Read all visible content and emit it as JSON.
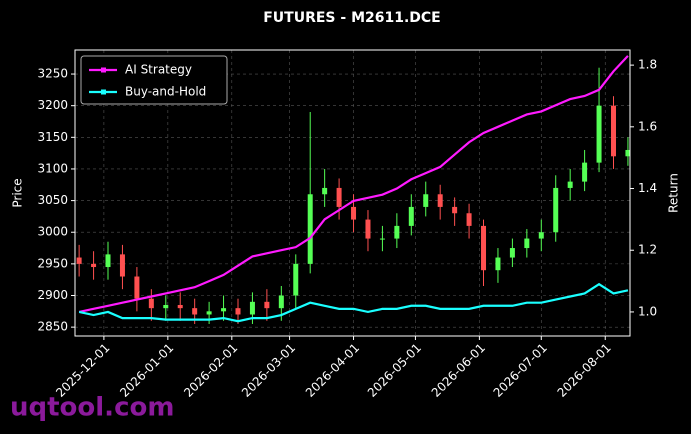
{
  "chart_data": {
    "type": "candlestick",
    "title": "FUTURES - M2611.DCE",
    "y_label": "Price",
    "y2_label": "Return",
    "watermark": "uqtool.com",
    "x": [
      "2025-11-19",
      "2025-11-26",
      "2025-12-03",
      "2025-12-10",
      "2025-12-17",
      "2025-12-24",
      "2025-12-31",
      "2026-01-07",
      "2026-01-14",
      "2026-01-21",
      "2026-01-28",
      "2026-02-04",
      "2026-02-11",
      "2026-02-18",
      "2026-02-25",
      "2026-03-04",
      "2026-03-11",
      "2026-03-18",
      "2026-03-25",
      "2026-04-01",
      "2026-04-08",
      "2026-04-15",
      "2026-04-22",
      "2026-04-29",
      "2026-05-06",
      "2026-05-13",
      "2026-05-20",
      "2026-05-27",
      "2026-06-03",
      "2026-06-10",
      "2026-06-17",
      "2026-06-24",
      "2026-07-01",
      "2026-07-08",
      "2026-07-15",
      "2026-07-22",
      "2026-07-29",
      "2026-08-05",
      "2026-08-12"
    ],
    "open": [
      2960,
      2950,
      2945,
      2965,
      2930,
      2895,
      2880,
      2885,
      2880,
      2870,
      2875,
      2880,
      2870,
      2890,
      2880,
      2900,
      2950,
      3060,
      3070,
      3040,
      3020,
      2990,
      2990,
      3010,
      3040,
      3060,
      3040,
      3030,
      3010,
      2940,
      2960,
      2975,
      2990,
      3000,
      3070,
      3080,
      3110,
      3200,
      3120
    ],
    "high": [
      2980,
      2970,
      2985,
      2980,
      2945,
      2910,
      2900,
      2905,
      2895,
      2890,
      2900,
      2895,
      2905,
      2910,
      2915,
      2965,
      3190,
      3100,
      3085,
      3060,
      3035,
      3010,
      3030,
      3060,
      3080,
      3075,
      3055,
      3045,
      3020,
      2975,
      2990,
      3005,
      3020,
      3090,
      3100,
      3130,
      3260,
      3215,
      3150
    ],
    "low": [
      2930,
      2925,
      2925,
      2910,
      2875,
      2860,
      2860,
      2860,
      2855,
      2855,
      2860,
      2855,
      2855,
      2860,
      2860,
      2880,
      2935,
      3040,
      3020,
      3000,
      2970,
      2970,
      2975,
      2995,
      3025,
      3020,
      3010,
      2990,
      2915,
      2920,
      2945,
      2960,
      2970,
      2985,
      3050,
      3065,
      3095,
      3100,
      3105
    ],
    "close": [
      2950,
      2945,
      2965,
      2930,
      2895,
      2880,
      2885,
      2880,
      2870,
      2875,
      2880,
      2870,
      2890,
      2880,
      2900,
      2950,
      3060,
      3070,
      3040,
      3020,
      2990,
      2990,
      3010,
      3040,
      3060,
      3040,
      3030,
      3010,
      2940,
      2960,
      2975,
      2990,
      3000,
      3070,
      3080,
      3110,
      3200,
      3120,
      3130
    ],
    "up_color": "#55ff55",
    "down_color": "#ff5050",
    "series": [
      {
        "name": "AI Strategy",
        "color": "#ff1aff",
        "axis": "y2",
        "values": [
          1.0,
          1.01,
          1.02,
          1.03,
          1.04,
          1.05,
          1.06,
          1.07,
          1.08,
          1.1,
          1.12,
          1.15,
          1.18,
          1.19,
          1.2,
          1.21,
          1.24,
          1.3,
          1.33,
          1.36,
          1.37,
          1.38,
          1.4,
          1.43,
          1.45,
          1.47,
          1.51,
          1.55,
          1.58,
          1.6,
          1.62,
          1.64,
          1.65,
          1.67,
          1.69,
          1.7,
          1.72,
          1.78,
          1.83
        ]
      },
      {
        "name": "Buy-and-Hold",
        "color": "#1affff",
        "axis": "y2",
        "values": [
          1.0,
          0.99,
          1.0,
          0.98,
          0.98,
          0.98,
          0.975,
          0.975,
          0.975,
          0.975,
          0.98,
          0.97,
          0.98,
          0.98,
          0.99,
          1.01,
          1.03,
          1.02,
          1.01,
          1.01,
          1.0,
          1.01,
          1.01,
          1.02,
          1.02,
          1.01,
          1.01,
          1.01,
          1.02,
          1.02,
          1.02,
          1.03,
          1.03,
          1.04,
          1.05,
          1.06,
          1.09,
          1.06,
          1.07
        ]
      }
    ],
    "xlim": [
      "2025-11-17",
      "2026-08-13"
    ],
    "xticks": [
      "2025-12-01",
      "2026-01-01",
      "2026-02-01",
      "2026-03-01",
      "2026-04-01",
      "2026-05-01",
      "2026-06-01",
      "2026-07-01",
      "2026-08-01"
    ],
    "ylim": [
      2836,
      3288
    ],
    "yticks": [
      2850,
      2900,
      2950,
      3000,
      3050,
      3100,
      3150,
      3200,
      3250
    ],
    "y2lim": [
      0.922,
      1.849
    ],
    "y2ticks": [
      {
        "value": 1.0,
        "label": "1.0"
      },
      {
        "value": 1.2,
        "label": "1.2"
      },
      {
        "value": 1.4,
        "label": "1.4"
      },
      {
        "value": 1.6,
        "label": "1.6"
      },
      {
        "value": 1.8,
        "label": "1.8"
      }
    ],
    "grid": true,
    "legend": "upper left"
  }
}
